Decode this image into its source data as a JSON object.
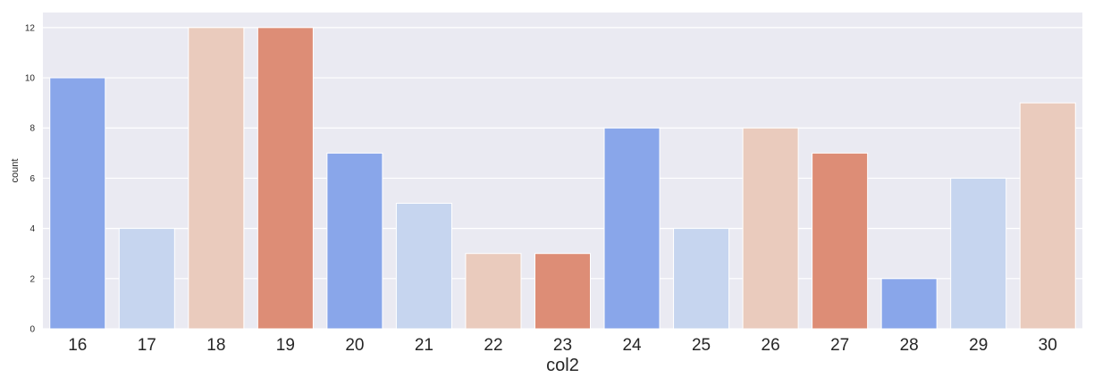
{
  "chart_data": {
    "type": "bar",
    "xlabel": "col2",
    "ylabel": "count",
    "categories": [
      "16",
      "17",
      "18",
      "19",
      "20",
      "21",
      "22",
      "23",
      "24",
      "25",
      "26",
      "27",
      "28",
      "29",
      "30"
    ],
    "values": [
      10,
      4,
      12,
      12,
      7,
      5,
      3,
      3,
      8,
      4,
      8,
      7,
      2,
      6,
      9
    ],
    "ylim": [
      0,
      12.6
    ],
    "yticks": [
      0,
      2,
      4,
      6,
      8,
      10,
      12
    ],
    "grid": true,
    "background": "#eaeaf2",
    "palette": [
      "#89a6ea",
      "#c6d5ef",
      "#eacbbd",
      "#dd8d76"
    ]
  }
}
